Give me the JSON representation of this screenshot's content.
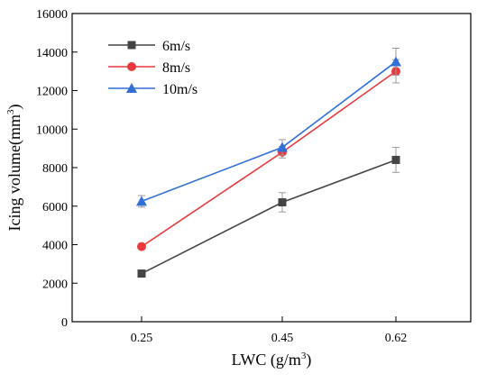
{
  "chart_data": {
    "type": "line",
    "title": "",
    "xlabel": "LWC (g/m",
    "xlabel_sup": "3",
    "xlabel_end": ")",
    "ylabel": "Icing volume(mm",
    "ylabel_sup": "3",
    "ylabel_end": ")",
    "categories": [
      "0.25",
      "0.45",
      "0.62"
    ],
    "ylim": [
      0,
      16000
    ],
    "yticks": [
      "0",
      "2000",
      "4000",
      "6000",
      "8000",
      "10000",
      "12000",
      "14000",
      "16000"
    ],
    "legend_position": "top-left",
    "grid": false,
    "series": [
      {
        "name": "6m/s",
        "marker": "square",
        "color": "#444444",
        "values": [
          2500,
          6200,
          8400
        ],
        "errors": [
          0,
          500,
          650
        ]
      },
      {
        "name": "8m/s",
        "marker": "circle",
        "color": "#e8393c",
        "values": [
          3900,
          8800,
          13000
        ],
        "errors": [
          0,
          300,
          600
        ]
      },
      {
        "name": "10m/s",
        "marker": "triangle",
        "color": "#2f6fd6",
        "values": [
          6250,
          9050,
          13500
        ],
        "errors": [
          300,
          400,
          700
        ]
      }
    ]
  }
}
